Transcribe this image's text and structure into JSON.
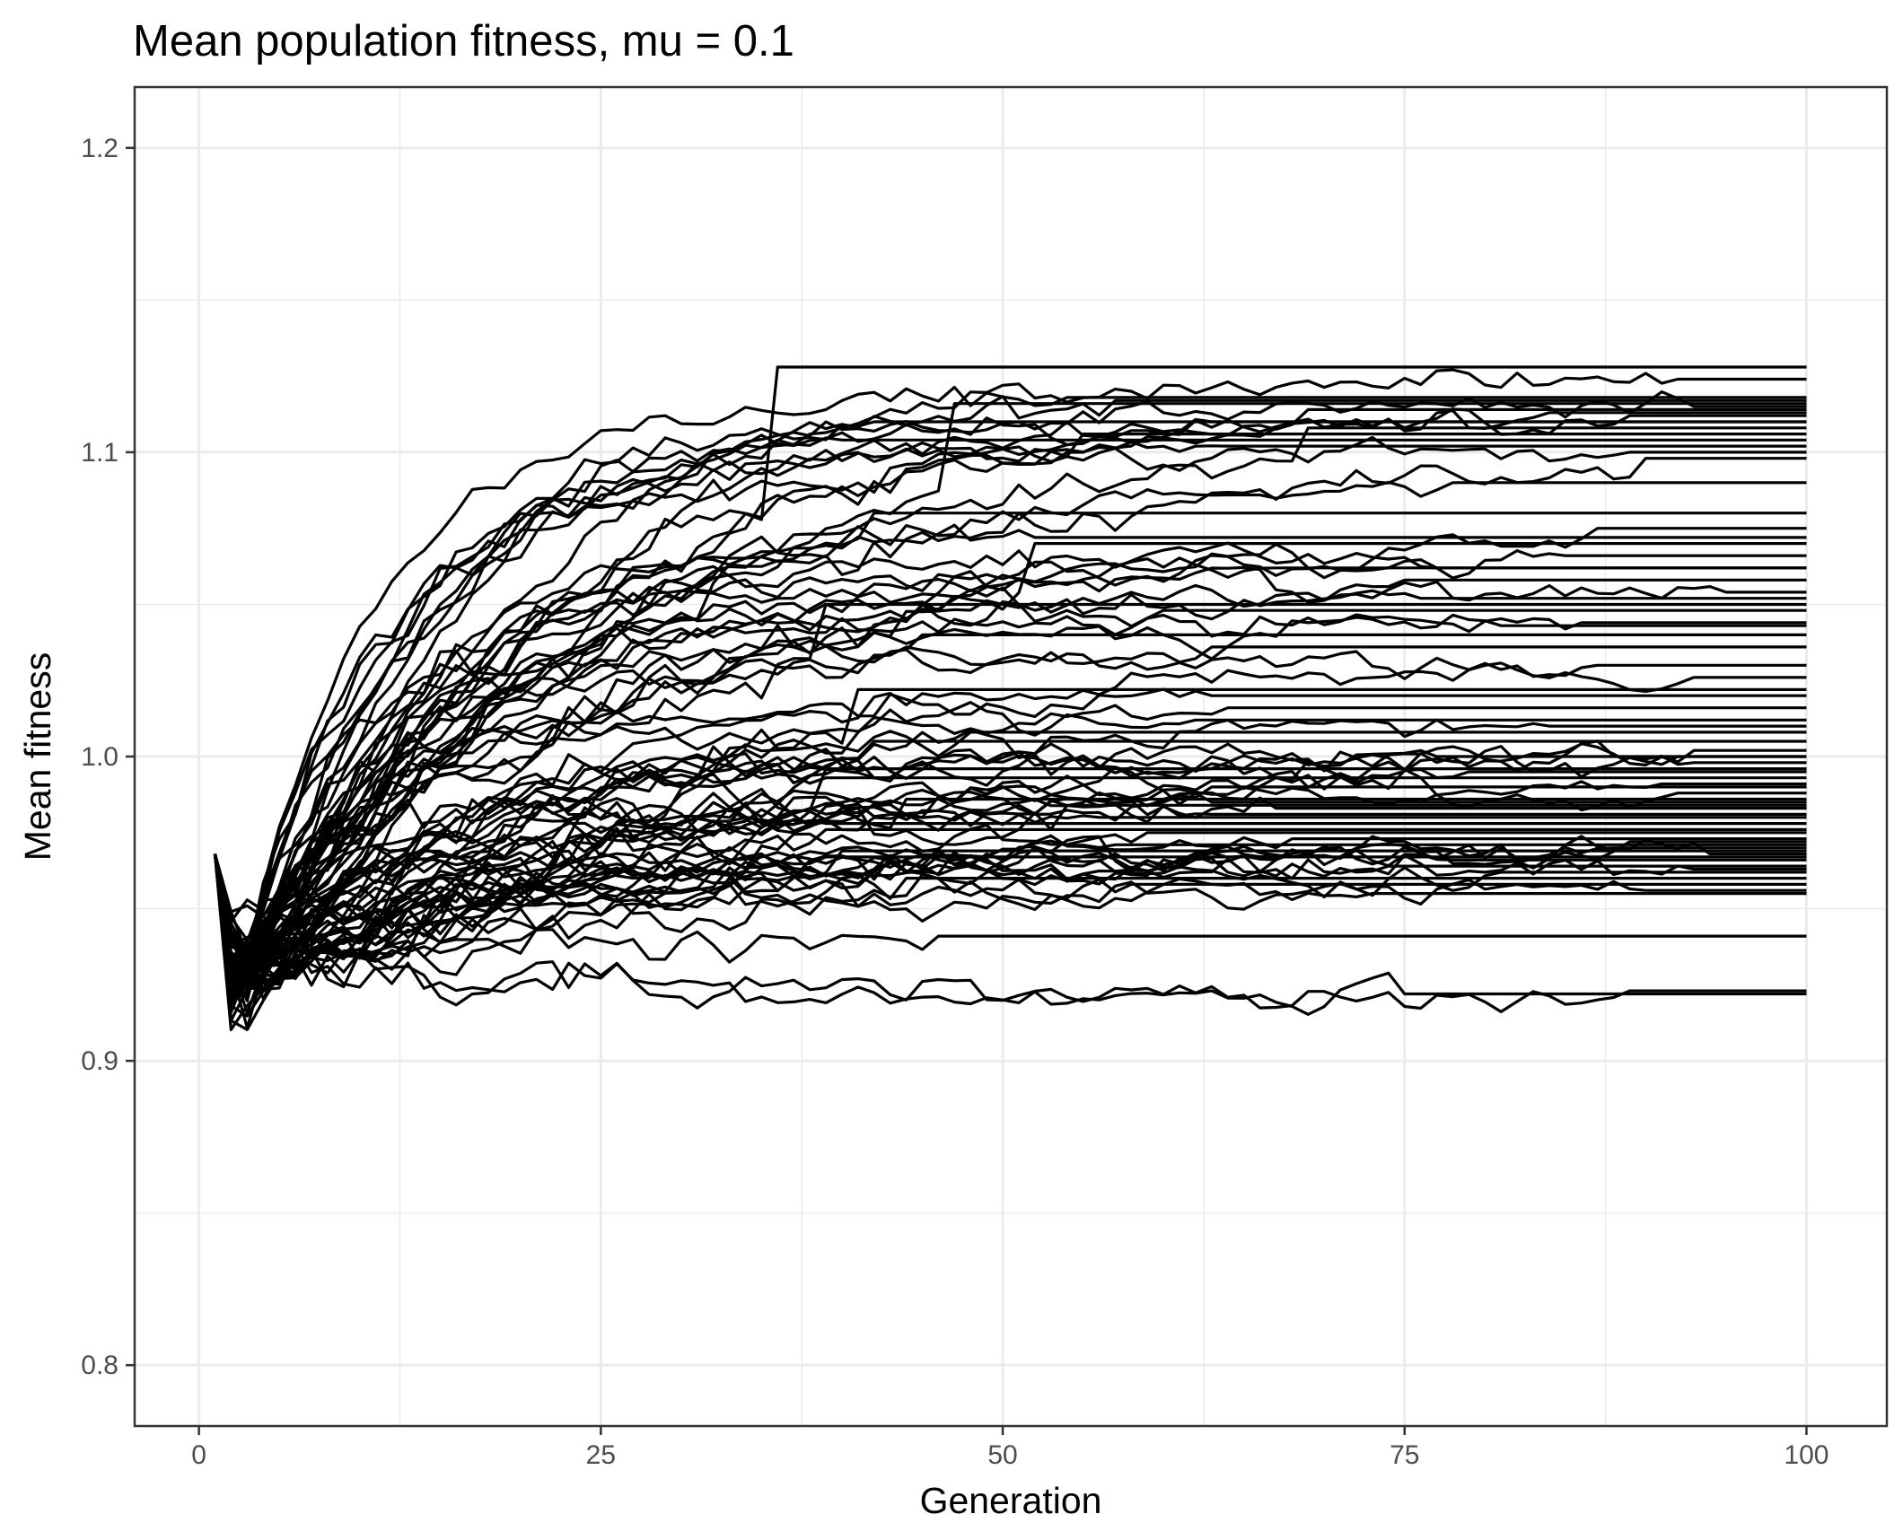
{
  "chart_data": {
    "type": "line",
    "title": "Mean population fitness, mu = 0.1",
    "xlabel": "Generation",
    "ylabel": "Mean fitness",
    "xlim": [
      -4,
      105
    ],
    "ylim": [
      0.78,
      1.22
    ],
    "x_ticks": [
      0,
      25,
      50,
      75,
      100
    ],
    "x_tick_labels": [
      "0",
      "25",
      "50",
      "75",
      "100"
    ],
    "y_ticks": [
      0.8,
      0.9,
      1.0,
      1.1,
      1.2
    ],
    "y_tick_labels": [
      "0.8",
      "0.9",
      "1.0",
      "1.1",
      "1.2"
    ],
    "grid": true,
    "line_color": "#000000",
    "generations": [
      1,
      100
    ],
    "start_value": 0.968,
    "series_count": 80,
    "series_final_values": [
      1.128,
      1.124,
      1.118,
      1.117,
      1.116,
      1.115,
      1.114,
      1.113,
      1.112,
      1.11,
      1.108,
      1.106,
      1.104,
      1.102,
      1.1,
      1.098,
      1.09,
      1.08,
      1.075,
      1.072,
      1.07,
      1.066,
      1.062,
      1.058,
      1.054,
      1.052,
      1.048,
      1.043,
      1.04,
      1.036,
      1.03,
      1.026,
      1.022,
      1.02,
      1.016,
      1.012,
      1.01,
      1.008,
      1.005,
      1.002,
      1.0,
      0.998,
      0.996,
      0.995,
      0.993,
      0.991,
      0.99,
      0.988,
      0.986,
      0.985,
      0.983,
      0.981,
      0.98,
      0.978,
      0.976,
      0.975,
      0.973,
      0.971,
      0.97,
      0.969,
      0.968,
      0.967,
      0.966,
      0.964,
      0.963,
      0.962,
      0.96,
      0.958,
      0.956,
      0.955,
      0.941,
      0.923,
      0.922,
      1.062,
      1.044,
      1.0,
      0.984,
      0.972,
      1.11,
      1.05
    ]
  }
}
